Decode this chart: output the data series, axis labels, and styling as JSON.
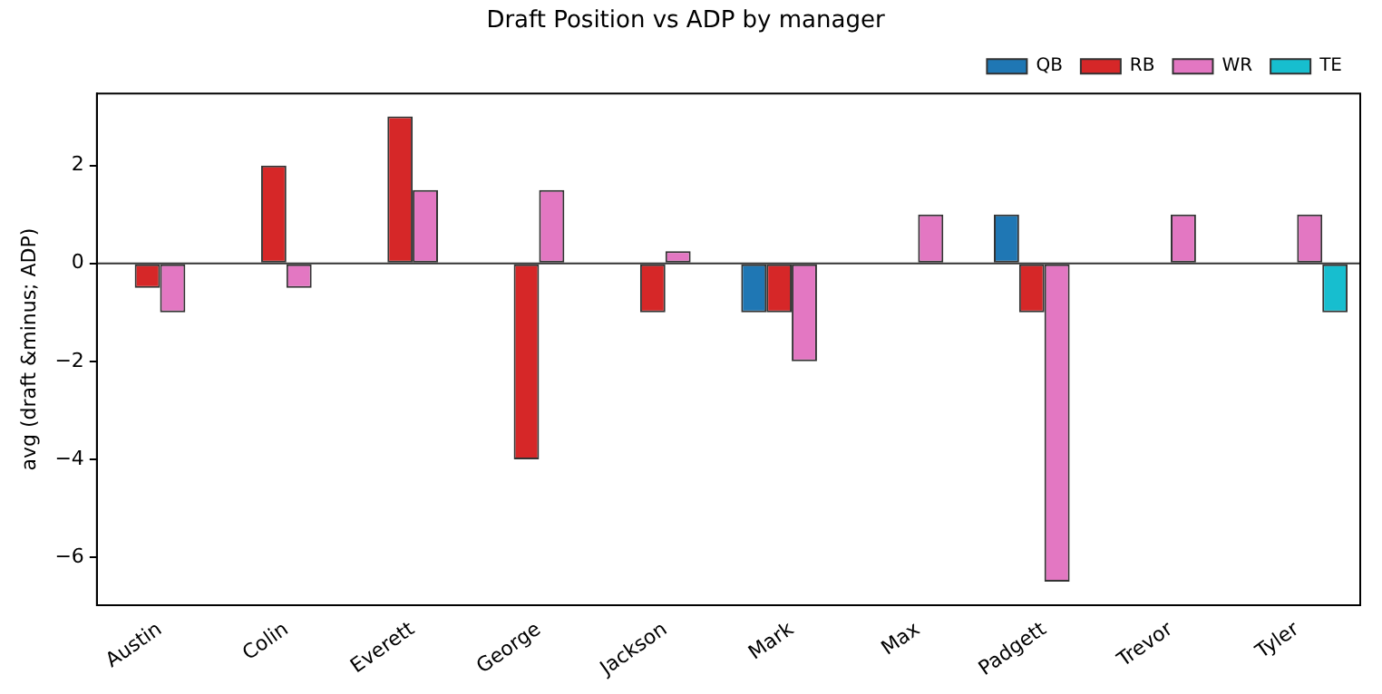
{
  "chart_data": {
    "type": "bar",
    "title": "Draft Position vs ADP by manager",
    "ylabel": "avg (draft &minus; ADP)",
    "categories": [
      "Austin",
      "Colin",
      "Everett",
      "George",
      "Jackson",
      "Mark",
      "Max",
      "Padgett",
      "Trevor",
      "Tyler"
    ],
    "series": [
      {
        "name": "QB",
        "color": "#1f77b4",
        "values": [
          0,
          0,
          0,
          0,
          0,
          -1,
          0,
          1,
          0,
          0
        ]
      },
      {
        "name": "RB",
        "color": "#d62728",
        "values": [
          -0.5,
          2,
          3,
          -4,
          -1,
          -1,
          0,
          -1,
          0,
          0
        ]
      },
      {
        "name": "WR",
        "color": "#e377c2",
        "values": [
          -1,
          -0.5,
          1.5,
          1.5,
          0.25,
          -2,
          1,
          -6.5,
          1,
          1
        ]
      },
      {
        "name": "TE",
        "color": "#17becf",
        "values": [
          0,
          0,
          0,
          0,
          0,
          0,
          0,
          0,
          0,
          -1
        ]
      }
    ],
    "ylim": [
      -6.98,
      3.47
    ],
    "yticks": [
      -6,
      -4,
      -2,
      0,
      2
    ],
    "grid": false,
    "legend": "top right",
    "ref_lines": [
      {
        "axis": "y",
        "value": 0,
        "color": "#333333"
      }
    ]
  }
}
